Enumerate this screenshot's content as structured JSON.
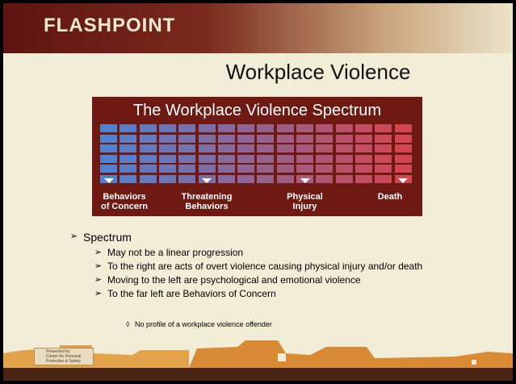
{
  "header": {
    "logo": "FLASHPOINT",
    "title": "Workplace Violence"
  },
  "spectrum": {
    "title": "The Workplace Violence Spectrum",
    "labels": [
      [
        "Behaviors",
        "of Concern"
      ],
      [
        "Threatening",
        "Behaviors"
      ],
      [
        "Physical",
        "Injury"
      ],
      [
        "Death"
      ]
    ]
  },
  "bullets": {
    "heading": "Spectrum",
    "items": [
      "May not be a linear progression",
      "To the right are acts of overt violence causing physical injury and/or death",
      "Moving to the left are psychological and emotional violence",
      "To the far left are Behaviors of Concern"
    ],
    "subitems": [
      "No profile of a workplace violence offender"
    ]
  },
  "footer": {
    "logo_lines": [
      "Presented by",
      "Center for Personal",
      "Protection & Safety"
    ]
  }
}
